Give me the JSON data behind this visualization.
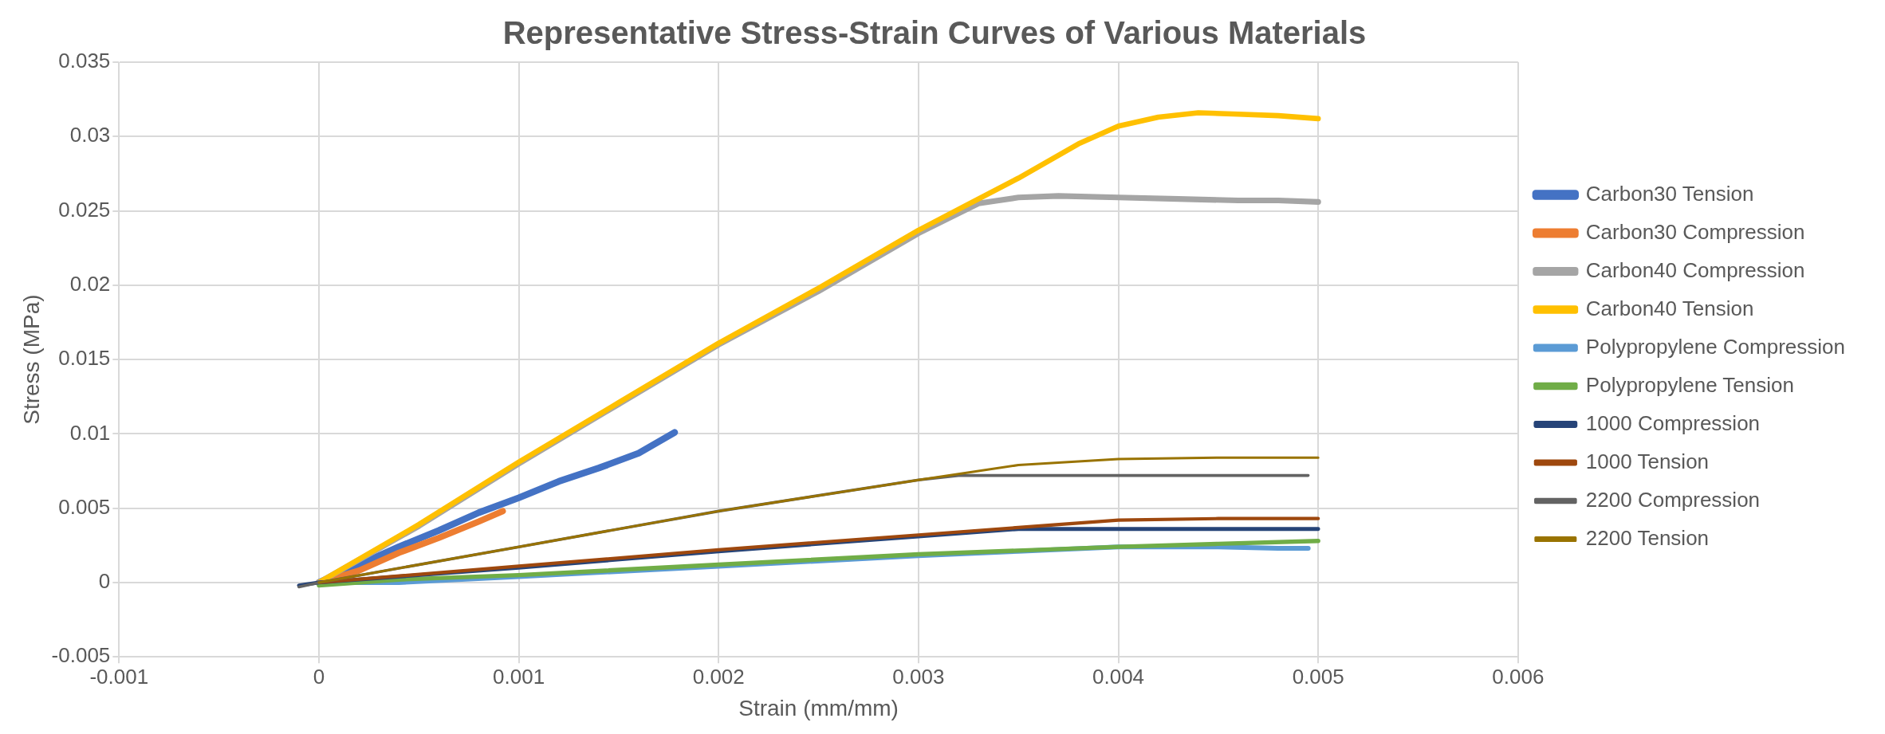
{
  "chart_data": {
    "type": "line",
    "title": "Representative Stress-Strain Curves of Various Materials",
    "xlabel": "Strain (mm/mm)",
    "ylabel": "Stress (MPa)",
    "xlim": [
      -0.001,
      0.006
    ],
    "xticks": [
      -0.001,
      0,
      0.001,
      0.002,
      0.003,
      0.004,
      0.005,
      0.006
    ],
    "ylim": [
      -0.005,
      0.035
    ],
    "yticks": [
      -0.005,
      0,
      0.005,
      0.01,
      0.015,
      0.02,
      0.025,
      0.03,
      0.035
    ],
    "grid": true,
    "legend": "right",
    "marker": "none",
    "line_style": "solid",
    "series": [
      {
        "name": "Carbon30 Tension",
        "color": "#4472c4",
        "x": [
          0,
          0.0002,
          0.0004,
          0.0006,
          0.0008,
          0.001,
          0.0012,
          0.0014,
          0.0016,
          0.00178
        ],
        "values": [
          0,
          0.0012,
          0.0024,
          0.0035,
          0.0047,
          0.0057,
          0.0068,
          0.0077,
          0.0087,
          0.0101
        ]
      },
      {
        "name": "Carbon30 Compression",
        "color": "#ed7d31",
        "x": [
          0,
          0.0002,
          0.0004,
          0.0006,
          0.0008,
          0.00092
        ],
        "values": [
          0,
          0.0008,
          0.002,
          0.003,
          0.0041,
          0.0048
        ]
      },
      {
        "name": "Carbon40 Compression",
        "color": "#a5a5a5",
        "x": [
          0,
          0.0005,
          0.001,
          0.0015,
          0.002,
          0.0025,
          0.003,
          0.0033,
          0.0035,
          0.0037,
          0.004,
          0.0043,
          0.0046,
          0.0048,
          0.005
        ],
        "values": [
          0,
          0.0038,
          0.008,
          0.012,
          0.016,
          0.0196,
          0.0235,
          0.0255,
          0.0259,
          0.026,
          0.0259,
          0.0258,
          0.0257,
          0.0257,
          0.0256
        ]
      },
      {
        "name": "Carbon40 Tension",
        "color": "#ffc000",
        "x": [
          0,
          0.0005,
          0.001,
          0.0015,
          0.002,
          0.0025,
          0.003,
          0.0035,
          0.0038,
          0.004,
          0.0042,
          0.0044,
          0.0046,
          0.0048,
          0.005
        ],
        "values": [
          0,
          0.0039,
          0.0081,
          0.0121,
          0.0161,
          0.0198,
          0.0237,
          0.0272,
          0.0295,
          0.0307,
          0.0313,
          0.0316,
          0.0315,
          0.0314,
          0.0312
        ]
      },
      {
        "name": "Polypropylene Compression",
        "color": "#5b9bd5",
        "x": [
          0,
          0.0004,
          0.001,
          0.002,
          0.003,
          0.0035,
          0.004,
          0.0045,
          0.0048,
          0.00495
        ],
        "values": [
          0,
          0,
          0.0004,
          0.0011,
          0.0018,
          0.0021,
          0.0024,
          0.0024,
          0.0023,
          0.0023
        ]
      },
      {
        "name": "Polypropylene Tension",
        "color": "#70ad47",
        "x": [
          0,
          0.0004,
          0.001,
          0.002,
          0.003,
          0.004,
          0.0045,
          0.005
        ],
        "values": [
          -0.0002,
          0.0002,
          0.0005,
          0.0012,
          0.0019,
          0.0024,
          0.0026,
          0.0028
        ]
      },
      {
        "name": "1000 Compression",
        "color": "#264478",
        "x": [
          -0.0001,
          0,
          0.001,
          0.002,
          0.003,
          0.0035,
          0.004,
          0.0045,
          0.005
        ],
        "values": [
          -0.0002,
          0,
          0.001,
          0.0021,
          0.0031,
          0.0036,
          0.0036,
          0.0036,
          0.0036
        ]
      },
      {
        "name": "1000 Tension",
        "color": "#9e480e",
        "x": [
          0,
          0.001,
          0.002,
          0.003,
          0.0035,
          0.004,
          0.0045,
          0.005
        ],
        "values": [
          0,
          0.0011,
          0.0022,
          0.0032,
          0.0037,
          0.0042,
          0.0043,
          0.0043
        ]
      },
      {
        "name": "2200 Compression",
        "color": "#636363",
        "x": [
          -0.0001,
          0,
          0.001,
          0.002,
          0.003,
          0.0032,
          0.004,
          0.0045,
          0.00495
        ],
        "values": [
          -0.0003,
          0,
          0.0024,
          0.0048,
          0.0069,
          0.0072,
          0.0072,
          0.0072,
          0.0072
        ]
      },
      {
        "name": "2200 Tension",
        "color": "#997300",
        "x": [
          0,
          0.001,
          0.002,
          0.003,
          0.0035,
          0.004,
          0.0045,
          0.005
        ],
        "values": [
          0,
          0.0024,
          0.0048,
          0.0069,
          0.0079,
          0.0083,
          0.0084,
          0.0084
        ]
      }
    ]
  }
}
